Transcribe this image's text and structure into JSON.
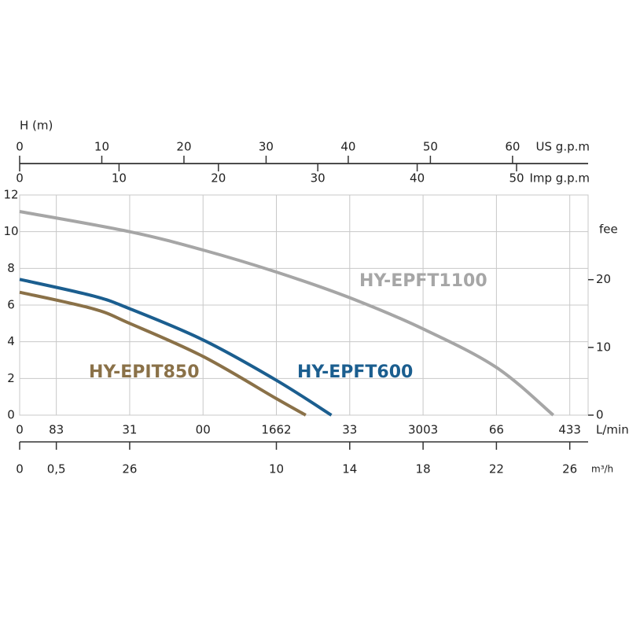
{
  "chart_data": {
    "type": "line",
    "y_label": "H (m)",
    "y2_label": "fee",
    "x_label": "L/min",
    "xlim": [
      0,
      31
    ],
    "xticks": [
      0,
      {
        "value": 2,
        "label": "83"
      },
      {
        "value": 6,
        "label": "31"
      },
      {
        "value": 10,
        "label": "00"
      },
      {
        "value": 14,
        "label": "1662"
      },
      {
        "value": 18,
        "label": "33"
      },
      {
        "value": 22,
        "label": "3003"
      },
      {
        "value": 26,
        "label": "66"
      },
      {
        "value": 30,
        "label": "433"
      }
    ],
    "ylim": [
      0,
      12
    ],
    "yticks": [
      0,
      2,
      4,
      6,
      8,
      10,
      12
    ],
    "y2lim": [
      0,
      32.5
    ],
    "y2ticks": [
      0,
      10,
      20
    ],
    "grid": true,
    "x_axes": [
      {
        "label": "US g.p.m",
        "lim": [
          0,
          69.2
        ],
        "ticks": [
          0,
          10,
          20,
          30,
          40,
          50,
          60
        ]
      },
      {
        "label": "Imp g.p.m",
        "lim": [
          0,
          57.2
        ],
        "ticks": [
          0,
          10,
          20,
          30,
          40,
          50
        ]
      },
      {
        "label": "m³/h",
        "ticks": [
          0,
          {
            "value": 2,
            "label": "0,5"
          },
          {
            "value": 6,
            "label": "26"
          },
          {
            "value": 14,
            "label": "10"
          },
          {
            "value": 18,
            "label": "14"
          },
          {
            "value": 22,
            "label": "18"
          },
          {
            "value": 26,
            "label": "22"
          },
          {
            "value": 30,
            "label": "26"
          }
        ]
      }
    ],
    "series": [
      {
        "name": "HY-EPFT1100",
        "color": "#a6a6a6",
        "x": [
          0,
          6,
          10,
          14,
          18,
          22,
          26,
          29.1
        ],
        "values": [
          11.1,
          10.0,
          9.0,
          7.8,
          6.4,
          4.7,
          2.6,
          0
        ]
      },
      {
        "name": "HY-EPFT600",
        "color": "#1b5e8f",
        "x": [
          0,
          4,
          6,
          10,
          14,
          17.0
        ],
        "values": [
          7.4,
          6.5,
          5.8,
          4.1,
          1.9,
          0
        ]
      },
      {
        "name": "HY-EPIT850",
        "color": "#8a7148",
        "x": [
          0,
          4,
          6,
          10,
          14,
          15.6
        ],
        "values": [
          6.7,
          5.8,
          5.0,
          3.2,
          0.9,
          0
        ]
      }
    ]
  }
}
